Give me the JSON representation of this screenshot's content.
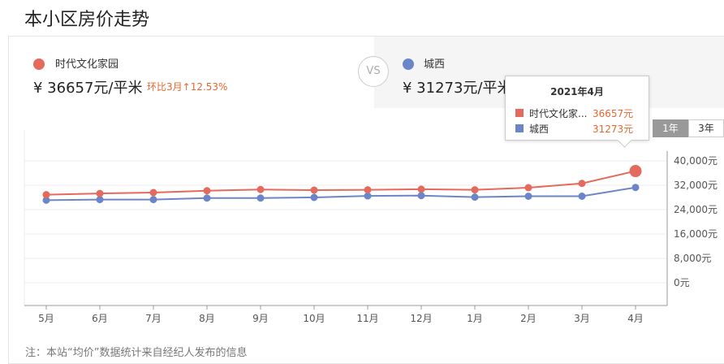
{
  "page": {
    "title": "本小区房价走势"
  },
  "compare": {
    "left": {
      "name": "时代文化家园",
      "price": "¥ 36657元/平米",
      "change": "环比3月↑12.53%",
      "color": "#e36a5c"
    },
    "vs": "VS",
    "right": {
      "name": "城西",
      "price": "¥ 31273元/平米",
      "color": "#6b86c8"
    }
  },
  "range_tabs": [
    {
      "label": "1年",
      "active": true
    },
    {
      "label": "3年",
      "active": false
    }
  ],
  "tooltip": {
    "title": "2021年4月",
    "rows": [
      {
        "name": "时代文化家...",
        "value": "36657元",
        "color": "#e36a5c"
      },
      {
        "name": "城西",
        "value": "31273元",
        "color": "#6b86c8"
      }
    ]
  },
  "chart_data": {
    "type": "line",
    "categories": [
      "5月",
      "6月",
      "7月",
      "8月",
      "9月",
      "10月",
      "11月",
      "12月",
      "1月",
      "2月",
      "3月",
      "4月"
    ],
    "series": [
      {
        "name": "时代文化家园",
        "color": "#e36a5c",
        "values": [
          28900,
          29300,
          29600,
          30200,
          30600,
          30400,
          30500,
          30700,
          30500,
          31200,
          32600,
          36657
        ]
      },
      {
        "name": "城西",
        "color": "#6b86c8",
        "values": [
          27100,
          27300,
          27300,
          27800,
          27800,
          28000,
          28500,
          28600,
          28100,
          28400,
          28400,
          31273
        ]
      }
    ],
    "y_ticks": [
      "40,000元",
      "32,000元",
      "24,000元",
      "16,000元",
      "8,000元",
      "0元"
    ],
    "ylim": [
      0,
      40000
    ],
    "highlight_index": 11,
    "grid": true,
    "y_axis_position": "right"
  },
  "footnote": "注：本站“均价”数据统计来自经纪人发布的信息"
}
